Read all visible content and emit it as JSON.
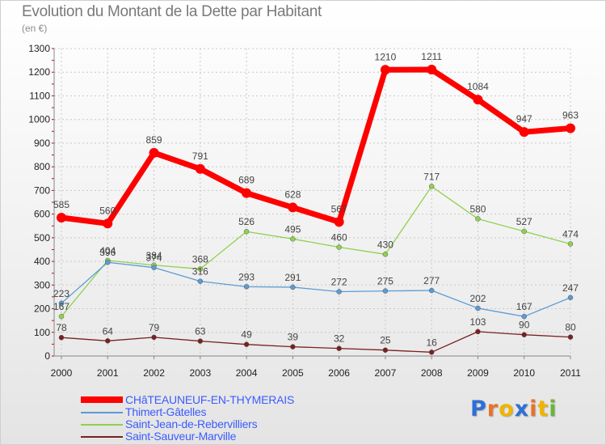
{
  "chart_data": {
    "type": "line",
    "title": "Evolution du Montant de la Dette par Habitant",
    "subtitle": "(en €)",
    "categories": [
      "2000",
      "2001",
      "2002",
      "2003",
      "2004",
      "2005",
      "2006",
      "2007",
      "2008",
      "2009",
      "2010",
      "2011"
    ],
    "ylim": [
      0,
      1300
    ],
    "yticks": [
      0,
      100,
      200,
      300,
      400,
      500,
      600,
      700,
      800,
      900,
      1000,
      1100,
      1200,
      1300
    ],
    "grid": true,
    "legend_position": "bottom-left",
    "series": [
      {
        "name": "CHâTEAUNEUF-EN-THYMERAIS",
        "color": "#ff0000",
        "width": 7,
        "marker": 6,
        "values": [
          585,
          560,
          859,
          791,
          689,
          628,
          567,
          1210,
          1211,
          1084,
          947,
          963
        ]
      },
      {
        "name": "Thimert-Gâtelles",
        "color": "#5b9bd5",
        "width": 1.3,
        "marker": 3,
        "values": [
          223,
          396,
          374,
          316,
          293,
          291,
          272,
          275,
          277,
          202,
          167,
          247
        ]
      },
      {
        "name": "Saint-Jean-de-Rebervilliers",
        "color": "#8fd14f",
        "width": 1.3,
        "marker": 3,
        "values": [
          167,
          404,
          384,
          368,
          526,
          495,
          460,
          430,
          717,
          580,
          527,
          474
        ]
      },
      {
        "name": "Saint-Sauveur-Marville",
        "color": "#7a2020",
        "width": 1.3,
        "marker": 3,
        "values": [
          78,
          64,
          79,
          63,
          49,
          39,
          32,
          25,
          16,
          103,
          90,
          80
        ]
      }
    ]
  },
  "legend": [
    {
      "label": "CHâTEAUNEUF-EN-THYMERAIS",
      "color": "#ff0000"
    },
    {
      "label": "Thimert-Gâtelles",
      "color": "#5b9bd5"
    },
    {
      "label": "Saint-Jean-de-Rebervilliers",
      "color": "#8fd14f"
    },
    {
      "label": "Saint-Sauveur-Marville",
      "color": "#7a2020"
    }
  ],
  "logo": {
    "letters": [
      "P",
      "r",
      "o",
      "x",
      "i",
      "t",
      "i"
    ],
    "colors": [
      "#2f6fd6",
      "#e8732a",
      "#f0b400",
      "#2f6fd6",
      "#e8732a",
      "#f0b400",
      "#6cb33e"
    ]
  }
}
